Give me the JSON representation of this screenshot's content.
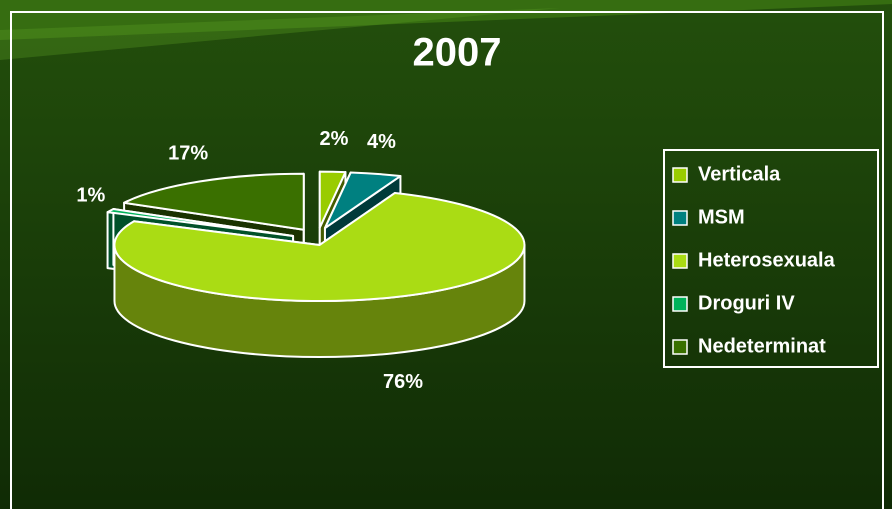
{
  "chart_data": {
    "type": "pie",
    "title": "2007",
    "categories": [
      "Verticala",
      "MSM",
      "Heterosexuala",
      "Droguri IV",
      "Nedeterminat"
    ],
    "values": [
      2,
      4,
      76,
      1,
      17
    ],
    "value_labels": [
      "2%",
      "4%",
      "76%",
      "1%",
      "17%"
    ],
    "colors": [
      "#99cc00",
      "#008080",
      "#aadc14",
      "#00b35a",
      "#3a7000"
    ],
    "legend": "right"
  }
}
